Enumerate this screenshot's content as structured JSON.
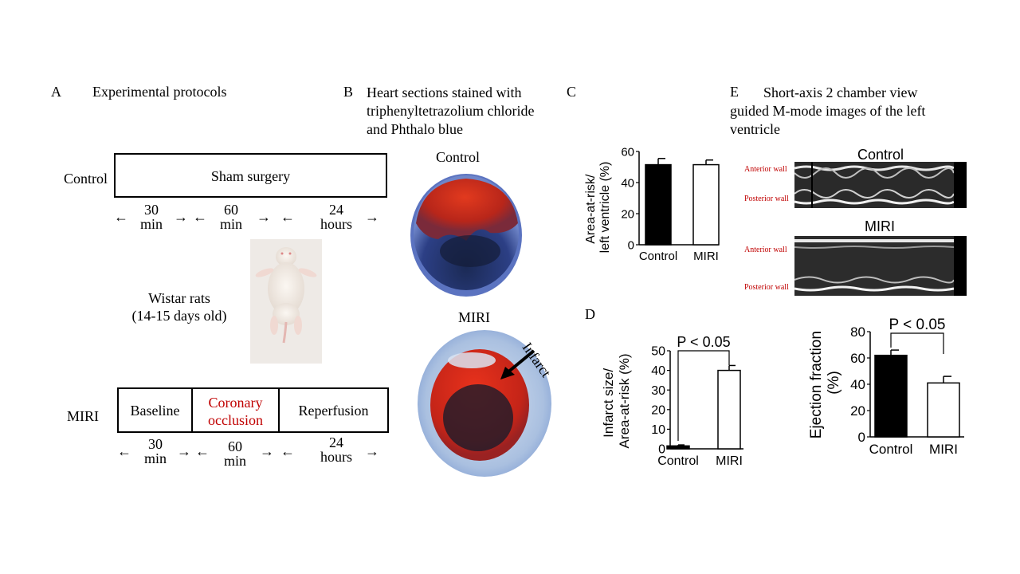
{
  "panelA": {
    "letter": "A",
    "title": "Experimental  protocols",
    "control_label": "Control",
    "sham_label": "Sham surgery",
    "times_top": [
      {
        "n": "30",
        "u": "min"
      },
      {
        "n": "60",
        "u": "min"
      },
      {
        "n": "24",
        "u": "hours"
      }
    ],
    "rat_line1": "Wistar rats",
    "rat_line2": "(14-15 days old)",
    "miri_label": "MIRI",
    "baseline_label": "Baseline",
    "occlusion_line1": "Coronary",
    "occlusion_line2": "occlusion",
    "reperfusion_label": "Reperfusion",
    "times_bottom": [
      {
        "n": "30",
        "u": "min"
      },
      {
        "n": "60",
        "u": "min"
      },
      {
        "n": "24",
        "u": "hours"
      }
    ],
    "occlusion_color": "#c00000"
  },
  "panelB": {
    "letter": "B",
    "title_line1": "Heart sections stained with",
    "title_line2": "triphenyltetrazolium  chloride",
    "title_line3": "and Phthalo blue",
    "control_label": "Control",
    "miri_label": "MIRI",
    "infarct_label": "Infarct"
  },
  "panelC": {
    "letter": "C",
    "ylabel_line1": "Area-at-risk/",
    "ylabel_line2": "left ventricle (%)",
    "yticks": [
      "0",
      "20",
      "40",
      "60"
    ],
    "categories": [
      "Control",
      "MIRI"
    ]
  },
  "panelD": {
    "letter": "D",
    "ylabel_line1": "Infarct size/",
    "ylabel_line2": "Area-at-risk (%)",
    "yticks": [
      "0",
      "10",
      "20",
      "30",
      "40",
      "50"
    ],
    "categories": [
      "Control",
      "MIRI"
    ],
    "significance": "P < 0.05"
  },
  "panelE": {
    "letter": "E",
    "title_line1": "Short-axis  2  chamber  view",
    "title_line2": "guided  M-mode  images  of  the  left",
    "title_line3": "ventricle",
    "control_label": "Control",
    "miri_label": "MIRI",
    "anterior_wall": "Anterior wall",
    "posterior_wall": "Posterior wall",
    "wall_label_color": "#c00000",
    "ylabel_line1": "Ejection fraction",
    "ylabel_line2": "(%)",
    "yticks": [
      "0",
      "20",
      "40",
      "60",
      "80"
    ],
    "categories": [
      "Control",
      "MIRI"
    ],
    "significance": "P < 0.05"
  },
  "chart_data": [
    {
      "type": "bar",
      "panel": "C",
      "categories": [
        "Control",
        "MIRI"
      ],
      "values": [
        51.5,
        51.5
      ],
      "errors": [
        4,
        3
      ],
      "ylabel": "Area-at-risk/ left ventricle (%)",
      "ylim": [
        0,
        60
      ],
      "fills": [
        "#000000",
        "#ffffff"
      ]
    },
    {
      "type": "bar",
      "panel": "D",
      "categories": [
        "Control",
        "MIRI"
      ],
      "values": [
        1.5,
        40
      ],
      "errors": [
        0.5,
        2.5
      ],
      "ylabel": "Infarct size/ Area-at-risk (%)",
      "ylim": [
        0,
        50
      ],
      "annotation": "P < 0.05",
      "fills": [
        "#000000",
        "#ffffff"
      ]
    },
    {
      "type": "bar",
      "panel": "E",
      "categories": [
        "Control",
        "MIRI"
      ],
      "values": [
        62,
        41
      ],
      "errors": [
        4,
        5
      ],
      "ylabel": "Ejection fraction (%)",
      "ylim": [
        0,
        80
      ],
      "annotation": "P < 0.05",
      "fills": [
        "#000000",
        "#ffffff"
      ]
    }
  ]
}
